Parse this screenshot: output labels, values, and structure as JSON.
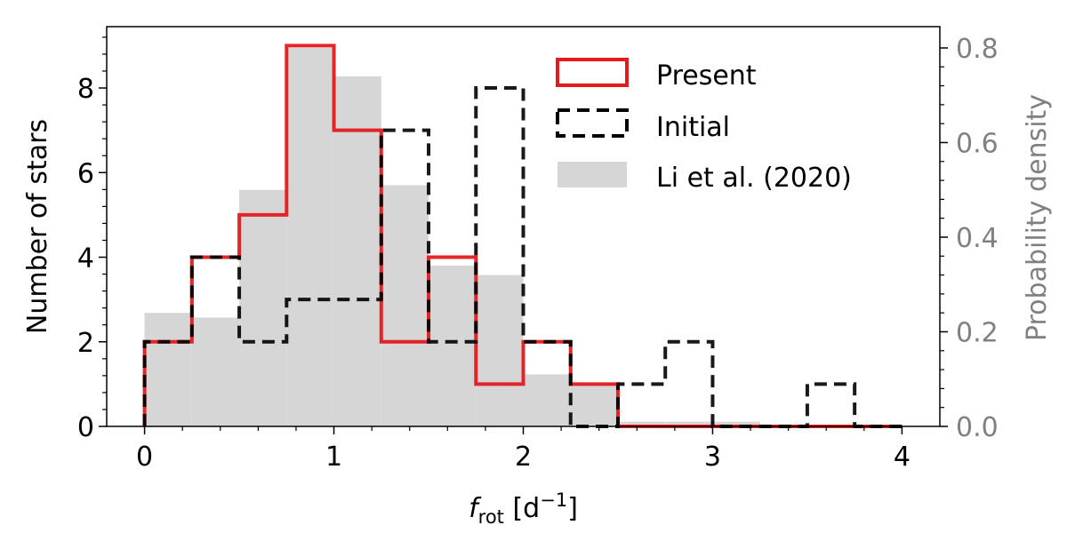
{
  "chart_data": {
    "type": "histogram",
    "bin_edges": [
      0,
      0.25,
      0.5,
      0.75,
      1.0,
      1.25,
      1.5,
      1.75,
      2.0,
      2.25,
      2.5,
      2.75,
      3.0,
      3.25,
      3.5,
      3.75,
      4.0
    ],
    "series": [
      {
        "name": "Present",
        "style": "step",
        "color": "#e41a1c",
        "axis": "left",
        "values": [
          2,
          4,
          5,
          9,
          7,
          2,
          4,
          1,
          2,
          1,
          0,
          0,
          0,
          0,
          0,
          0
        ]
      },
      {
        "name": "Initial",
        "style": "step-dashed",
        "color": "#000000",
        "axis": "left",
        "values": [
          2,
          4,
          2,
          3,
          3,
          7,
          2,
          8,
          2,
          0,
          1,
          2,
          0,
          0,
          1,
          0
        ]
      },
      {
        "name": "Li et al. (2020)",
        "style": "filled",
        "color": "#d6d6d6",
        "axis": "right",
        "bin_edges": [
          0,
          0.25,
          0.5,
          0.75,
          1.0,
          1.25,
          1.5,
          1.75,
          2.0,
          2.25,
          2.5,
          2.75,
          3.0,
          3.25
        ],
        "values": [
          0.24,
          0.23,
          0.5,
          0.8,
          0.74,
          0.51,
          0.34,
          0.32,
          0.11,
          0.09,
          0.01,
          0.01,
          0.01
        ]
      }
    ],
    "xlabel": {
      "main": "f",
      "sub": "rot",
      "unit_open": " [d",
      "unit_sup": "−1",
      "unit_close": "]"
    },
    "ylabel": "Number of stars",
    "ylabel_right": "Probability density",
    "xlim": [
      -0.2,
      4.2
    ],
    "ylim": [
      0,
      9.45
    ],
    "ylim_right": [
      0,
      0.845
    ],
    "xticks": [
      0,
      1,
      2,
      3,
      4
    ],
    "yticks": [
      0,
      2,
      4,
      6,
      8
    ],
    "yticks_right": [
      0.0,
      0.2,
      0.4,
      0.6,
      0.8
    ],
    "ytick_labels_right": [
      "0.0",
      "0.2",
      "0.4",
      "0.6",
      "0.8"
    ],
    "right_axis_color": "#808080",
    "legend_position": "top-right",
    "grid": false
  }
}
